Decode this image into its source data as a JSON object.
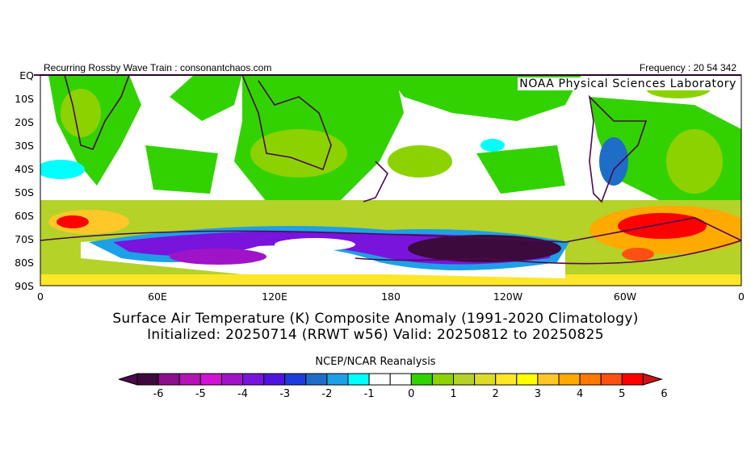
{
  "header": {
    "left": "Recurring Rossby Wave Train : consonantchaos.com",
    "right": "Frequency : 20 54 342",
    "lab": "NOAA Physical Sciences Laboratory"
  },
  "lat_labels": [
    "EQ",
    "10S",
    "20S",
    "30S",
    "40S",
    "50S",
    "60S",
    "70S",
    "80S",
    "90S"
  ],
  "lon_labels": [
    "0",
    "60E",
    "120E",
    "180",
    "120W",
    "60W",
    "0"
  ],
  "title": {
    "line1": "Surface Air Temperature (K) Composite Anomaly (1991-2020 Climatology)",
    "line2": "Initialized: 20250714 (RRWT w56) Valid: 20250812 to 20250825"
  },
  "colorbar": {
    "label": "NCEP/NCAR Reanalysis",
    "ticks": [
      "-6",
      "-5",
      "-4",
      "-3",
      "-2",
      "-1",
      "0",
      "1",
      "2",
      "3",
      "4",
      "5",
      "6"
    ],
    "colors": [
      "#3c0a3c",
      "#8c0f8c",
      "#b414b4",
      "#d214d2",
      "#a014c8",
      "#7814dc",
      "#5014dc",
      "#1e3cdc",
      "#1e6ec8",
      "#1ea0e6",
      "#00ffff",
      "#ffffff",
      "#ffffff",
      "#32d200",
      "#8cd200",
      "#b4d228",
      "#dcdc28",
      "#ffe628",
      "#ffff00",
      "#ffc828",
      "#ffaa00",
      "#ff7800",
      "#ff5014",
      "#ff0000"
    ],
    "low_arrow": "#4b0a4b",
    "high_arrow": "#c81414"
  }
}
